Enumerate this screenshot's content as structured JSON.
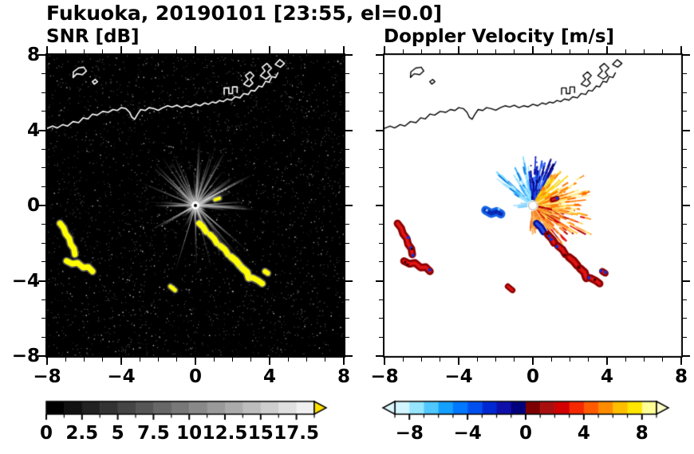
{
  "figure": {
    "title": "Fukuoka, 20190101 [23:55, el=0.0]",
    "left_panel_title": "SNR [dB]",
    "right_panel_title": "Doppler Velocity [m/s]"
  },
  "chart_data": {
    "type": "heatmap",
    "station": "Fukuoka",
    "date": "20190101",
    "time": "23:55",
    "elevation": "0.0",
    "panels": [
      {
        "id": "snr",
        "title": "SNR [dB]",
        "units": "dB",
        "background": "#000000"
      },
      {
        "id": "vel",
        "title": "Doppler Velocity [m/s]",
        "units": "m/s",
        "background": "#ffffff"
      }
    ],
    "axes": {
      "xlim": [
        -8,
        8
      ],
      "ylim": [
        -8,
        8
      ],
      "xticks": [
        -8,
        -4,
        0,
        4,
        8
      ],
      "xtick_labels": [
        "−8",
        "−4",
        "0",
        "4",
        "8"
      ],
      "yticks": [
        8,
        4,
        0,
        -4,
        -8
      ],
      "ytick_labels": [
        "8",
        "4",
        "0",
        "−4",
        "−8"
      ],
      "minor_step": 1
    },
    "snr_colorbar": {
      "min": 0,
      "max": 18.75,
      "minor_step": 1.25,
      "tick_values": [
        0,
        2.5,
        5,
        7.5,
        10,
        12.5,
        15,
        17.5
      ],
      "tick_labels": [
        "0",
        "2.5",
        "5",
        "7.5",
        "10",
        "12.5",
        "15",
        "17.5"
      ],
      "segment_colors": [
        "#000000",
        "#111111",
        "#222222",
        "#333333",
        "#454545",
        "#565656",
        "#676767",
        "#787878",
        "#898989",
        "#9a9a9a",
        "#ababab",
        "#bdbdbd",
        "#cecece",
        "#dfdfdf",
        "#f0f0f0"
      ],
      "over_arrow_color": "#ffe100"
    },
    "vel_colorbar": {
      "min": -9,
      "max": 9,
      "minor_step": 1,
      "tick_values": [
        -8,
        -4,
        0,
        4,
        8
      ],
      "tick_labels": [
        "−8",
        "−4",
        "0",
        "4",
        "8"
      ],
      "segment_colors": [
        "#d2f5ff",
        "#96e6ff",
        "#50c8ff",
        "#14a0ff",
        "#0078ff",
        "#0050f0",
        "#0028d2",
        "#0f0faa",
        "#00007d",
        "#7d0000",
        "#aa0f0f",
        "#d20000",
        "#f52800",
        "#ff5a00",
        "#ff8c00",
        "#ffbe00",
        "#ffe600",
        "#ffff96"
      ],
      "under_arrow_color": "#dcf8ff",
      "over_arrow_color": "#ffffc8"
    },
    "coastline": {
      "color_snr": "#ffffff",
      "color_vel": "#000000",
      "paths": [
        {
          "name": "main-coast",
          "closed": false,
          "pts": [
            [
              -8,
              4.1
            ],
            [
              -7.7,
              4.22
            ],
            [
              -7.45,
              4.12
            ],
            [
              -7.15,
              4.3
            ],
            [
              -6.9,
              4.22
            ],
            [
              -6.6,
              4.46
            ],
            [
              -6.3,
              4.4
            ],
            [
              -6.05,
              4.66
            ],
            [
              -5.8,
              4.6
            ],
            [
              -5.55,
              4.86
            ],
            [
              -5.3,
              4.8
            ],
            [
              -5.0,
              5.0
            ],
            [
              -4.7,
              4.95
            ],
            [
              -4.45,
              5.1
            ],
            [
              -4.2,
              5.05
            ],
            [
              -4.0,
              5.2
            ],
            [
              -3.75,
              5.15
            ],
            [
              -3.55,
              4.95
            ],
            [
              -3.42,
              4.68
            ],
            [
              -3.28,
              4.58
            ],
            [
              -3.12,
              4.85
            ],
            [
              -2.95,
              5.1
            ],
            [
              -2.7,
              5.05
            ],
            [
              -2.5,
              5.2
            ],
            [
              -2.25,
              5.15
            ],
            [
              -2.0,
              5.06
            ],
            [
              -1.75,
              5.2
            ],
            [
              -1.5,
              5.3
            ],
            [
              -1.25,
              5.23
            ],
            [
              -1.0,
              5.33
            ],
            [
              -0.75,
              5.2
            ],
            [
              -0.5,
              5.3
            ],
            [
              -0.25,
              5.24
            ],
            [
              0,
              5.38
            ],
            [
              0.25,
              5.3
            ],
            [
              0.5,
              5.45
            ],
            [
              0.7,
              5.38
            ],
            [
              0.9,
              5.5
            ],
            [
              1.1,
              5.45
            ],
            [
              1.3,
              5.58
            ],
            [
              1.5,
              5.52
            ],
            [
              1.7,
              5.66
            ],
            [
              1.95,
              5.6
            ],
            [
              2.15,
              5.78
            ],
            [
              2.4,
              5.72
            ],
            [
              2.6,
              5.95
            ],
            [
              2.85,
              5.9
            ],
            [
              3.0,
              6.12
            ],
            [
              3.2,
              6.08
            ],
            [
              3.42,
              6.35
            ],
            [
              3.6,
              6.3
            ],
            [
              3.78,
              6.6
            ],
            [
              3.98,
              6.55
            ],
            [
              4.12,
              6.85
            ],
            [
              4.32,
              6.8
            ],
            [
              4.45,
              7.05
            ]
          ]
        },
        {
          "name": "island-northwest",
          "closed": true,
          "pts": [
            [
              -6.6,
              6.8
            ],
            [
              -6.4,
              7.0
            ],
            [
              -6.1,
              6.95
            ],
            [
              -5.88,
              7.15
            ],
            [
              -6.02,
              7.35
            ],
            [
              -6.32,
              7.3
            ],
            [
              -6.58,
              7.1
            ]
          ]
        },
        {
          "name": "islet",
          "closed": true,
          "pts": [
            [
              -5.45,
              6.45
            ],
            [
              -5.28,
              6.58
            ],
            [
              -5.4,
              6.7
            ],
            [
              -5.56,
              6.58
            ]
          ]
        },
        {
          "name": "port-blocks-1",
          "closed": false,
          "pts": [
            [
              1.55,
              5.9
            ],
            [
              1.55,
              6.25
            ],
            [
              1.8,
              6.25
            ],
            [
              1.8,
              5.95
            ],
            [
              2.0,
              5.95
            ],
            [
              2.0,
              6.3
            ],
            [
              2.25,
              6.3
            ],
            [
              2.25,
              6.0
            ]
          ]
        },
        {
          "name": "port-blocks-2",
          "closed": true,
          "pts": [
            [
              2.6,
              6.45
            ],
            [
              2.85,
              6.7
            ],
            [
              2.7,
              6.9
            ],
            [
              2.95,
              7.1
            ],
            [
              3.15,
              6.9
            ],
            [
              2.95,
              6.7
            ],
            [
              3.1,
              6.5
            ],
            [
              2.9,
              6.32
            ]
          ]
        },
        {
          "name": "port-blocks-3",
          "closed": true,
          "pts": [
            [
              3.5,
              6.9
            ],
            [
              3.75,
              7.15
            ],
            [
              3.6,
              7.35
            ],
            [
              3.85,
              7.55
            ],
            [
              4.1,
              7.3
            ],
            [
              3.9,
              7.1
            ],
            [
              4.05,
              6.9
            ],
            [
              3.8,
              6.72
            ]
          ]
        },
        {
          "name": "breakwater-ne",
          "closed": true,
          "pts": [
            [
              4.3,
              7.5
            ],
            [
              4.55,
              7.75
            ],
            [
              4.8,
              7.55
            ],
            [
              4.58,
              7.35
            ]
          ]
        }
      ]
    },
    "clutter_snr_color": "#ffff00",
    "clutter": [
      {
        "name": "west-arc-upper",
        "w": 7,
        "pts": [
          [
            -7.3,
            -0.95
          ],
          [
            -7.1,
            -1.2
          ],
          [
            -7.0,
            -1.5
          ],
          [
            -6.8,
            -1.75
          ],
          [
            -6.73,
            -2.05
          ],
          [
            -6.55,
            -2.3
          ],
          [
            -6.5,
            -2.6
          ]
        ]
      },
      {
        "name": "west-arc-lower",
        "w": 7,
        "pts": [
          [
            -6.95,
            -2.95
          ],
          [
            -6.65,
            -3.1
          ],
          [
            -6.35,
            -3.05
          ],
          [
            -6.05,
            -3.3
          ],
          [
            -5.78,
            -3.27
          ],
          [
            -5.55,
            -3.5
          ]
        ]
      },
      {
        "name": "chain-a",
        "w": 7,
        "vel": "blue",
        "pts": [
          [
            0.2,
            -0.95
          ],
          [
            0.42,
            -1.15
          ],
          [
            0.58,
            -1.4
          ]
        ]
      },
      {
        "name": "chain-b",
        "w": 7,
        "pts": [
          [
            0.8,
            -1.55
          ],
          [
            1.0,
            -1.75
          ],
          [
            1.15,
            -2.0
          ]
        ]
      },
      {
        "name": "chain-c",
        "w": 7,
        "pts": [
          [
            1.35,
            -2.15
          ],
          [
            1.6,
            -2.35
          ],
          [
            1.75,
            -2.6
          ]
        ]
      },
      {
        "name": "chain-d",
        "w": 8,
        "pts": [
          [
            1.95,
            -2.75
          ],
          [
            2.2,
            -2.95
          ],
          [
            2.4,
            -3.2
          ]
        ]
      },
      {
        "name": "chain-e",
        "w": 8,
        "pts": [
          [
            2.55,
            -3.35
          ],
          [
            2.78,
            -3.55
          ],
          [
            2.88,
            -3.85
          ]
        ]
      },
      {
        "name": "chain-f",
        "w": 7,
        "pts": [
          [
            3.1,
            -3.85
          ],
          [
            3.4,
            -4.0
          ],
          [
            3.6,
            -4.15
          ]
        ]
      },
      {
        "name": "east-dot",
        "w": 6,
        "pts": [
          [
            3.75,
            -3.5
          ],
          [
            3.9,
            -3.6
          ]
        ]
      },
      {
        "name": "south-dash",
        "w": 5,
        "pts": [
          [
            -1.35,
            -4.3
          ],
          [
            -1.1,
            -4.5
          ]
        ]
      },
      {
        "name": "ne-dash",
        "w": 4,
        "pts": [
          [
            1.05,
            0.3
          ],
          [
            1.3,
            0.38
          ]
        ]
      },
      {
        "name": "west-blue-blob",
        "w": 11,
        "vel": "blueblob",
        "vel_only": true,
        "pts": [
          [
            -2.55,
            -0.25
          ],
          [
            -2.25,
            -0.42
          ],
          [
            -1.95,
            -0.32
          ],
          [
            -1.72,
            -0.45
          ]
        ]
      }
    ],
    "snr_field": {
      "background": "#000000",
      "seed": 19,
      "noise": {
        "dark_count": 2600,
        "dark_min": 22,
        "dark_max": 110,
        "bright_count": 260,
        "bright_min": 115,
        "bright_max": 215
      },
      "streaks": {
        "count": 135,
        "r0": 0.25,
        "len_min": 0.7,
        "len_max": 3.7,
        "gray_min": 90,
        "gray_max": 235,
        "az_keep": [
          {
            "a0": 185,
            "a1": 265,
            "keep": 0.22
          },
          {
            "a0": 150,
            "a1": 185,
            "keep": 0.55
          },
          {
            "a0": 265,
            "a1": 300,
            "keep": 0.6
          }
        ]
      }
    },
    "vel_field": {
      "background": "#ffffff",
      "seed": 55,
      "fan_bands": [
        {
          "a0": 96,
          "a1": 150,
          "colors": [
            "#78dcff",
            "#b4ecff",
            "#3cb4ff",
            "#0f82e6",
            "#a0e6ff"
          ],
          "rmin": 0.5,
          "rmax": 2.7,
          "density": 0.45
        },
        {
          "a0": 60,
          "a1": 96,
          "colors": [
            "#1428c8",
            "#0a0aa0",
            "#1e50f0",
            "#060678",
            "#3c78ff"
          ],
          "rmin": 0.6,
          "rmax": 2.8,
          "density": 0.92
        },
        {
          "a0": 30,
          "a1": 60,
          "colors": [
            "#ffd20a",
            "#ffaa00",
            "#ff7d0a",
            "#f0e63c"
          ],
          "rmin": 0.7,
          "rmax": 2.5,
          "density": 0.85
        },
        {
          "a0": -12,
          "a1": 30,
          "colors": [
            "#ffe14b",
            "#ffb414",
            "#ff8c14",
            "#fff0a0",
            "#ff6e00"
          ],
          "rmin": 0.9,
          "rmax": 3.2,
          "density": 0.9
        },
        {
          "a0": -58,
          "a1": -12,
          "colors": [
            "#ff7d14",
            "#e61414",
            "#ffa53c",
            "#b40a0a",
            "#ffd24b"
          ],
          "rmin": 0.8,
          "rmax": 3.6,
          "density": 0.8
        },
        {
          "a0": -96,
          "a1": -58,
          "colors": [
            "#ff9632",
            "#ffb45a",
            "#e66414"
          ],
          "rmin": 0.45,
          "rmax": 1.7,
          "density": 0.55
        },
        {
          "a0": 150,
          "a1": 200,
          "colors": [
            "#82d2ff",
            "#b4e6ff"
          ],
          "rmin": 0.35,
          "rmax": 1.2,
          "density": 0.2
        }
      ]
    }
  }
}
